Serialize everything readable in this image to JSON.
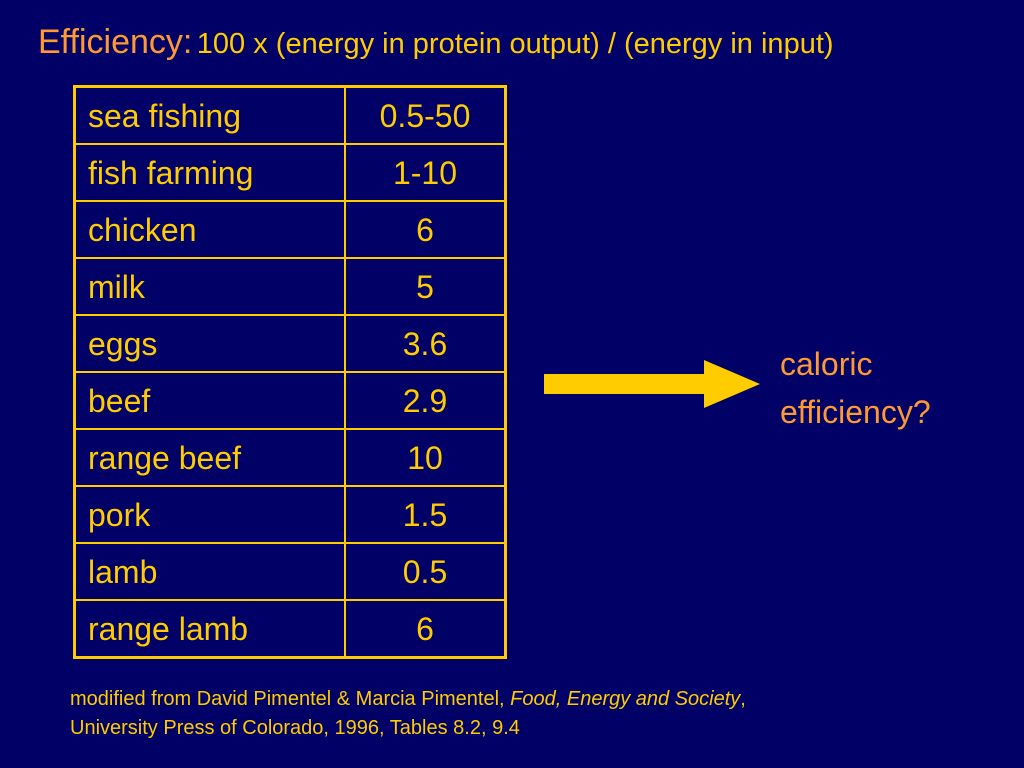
{
  "title": {
    "lead": "Efficiency:",
    "rest": "100 x (energy in protein output) / (energy in input)"
  },
  "table": {
    "rows": [
      {
        "label": "sea fishing",
        "value": "0.5-50"
      },
      {
        "label": "fish farming",
        "value": "1-10"
      },
      {
        "label": "chicken",
        "value": "6"
      },
      {
        "label": "milk",
        "value": "5"
      },
      {
        "label": "eggs",
        "value": "3.6"
      },
      {
        "label": "beef",
        "value": "2.9"
      },
      {
        "label": "range beef",
        "value": "10"
      },
      {
        "label": "pork",
        "value": "1.5"
      },
      {
        "label": "lamb",
        "value": "0.5"
      },
      {
        "label": "range lamb",
        "value": "6"
      }
    ]
  },
  "arrow": {
    "icon": "right-arrow-icon",
    "color": "#FFCC00"
  },
  "callout": {
    "line1": "caloric",
    "line2": "efficiency?"
  },
  "citation": {
    "line1_prefix": "modified from David Pimentel & Marcia Pimentel, ",
    "book_title": "Food, Energy and Society",
    "line1_suffix": ",",
    "line2": "University Press of Colorado, 1996, Tables 8.2, 9.4"
  },
  "colors": {
    "background": "#000066",
    "text_yellow": "#FFCC00",
    "text_orange": "#FF9933"
  }
}
